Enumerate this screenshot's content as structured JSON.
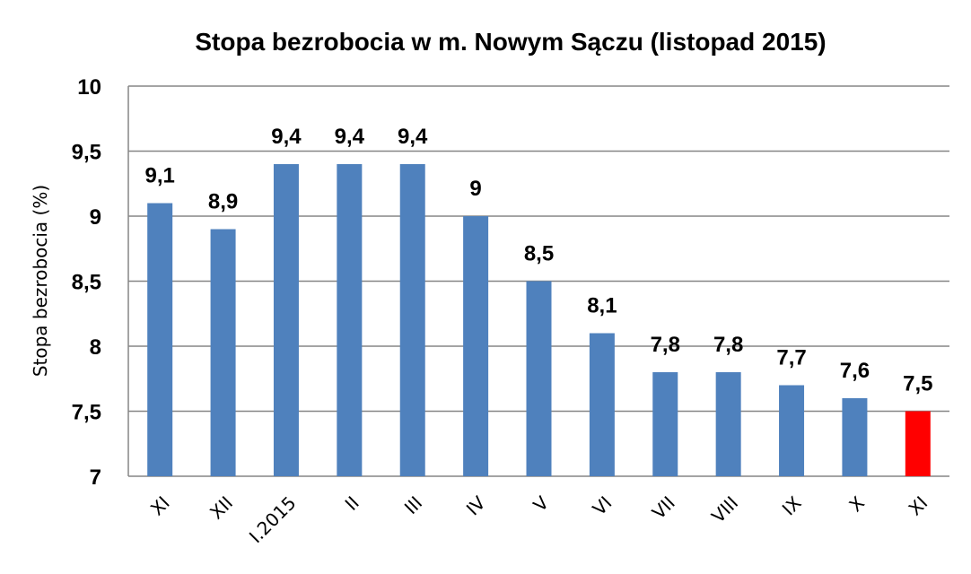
{
  "chart_data": {
    "type": "bar",
    "title": "Stopa bezrobocia w m. Nowym Sączu (listopad 2015)",
    "xlabel": "",
    "ylabel": "Stopa bezrobocia (%)",
    "ylim": [
      7,
      10
    ],
    "yticks": [
      7,
      7.5,
      8,
      8.5,
      9,
      9.5,
      10
    ],
    "ytick_labels": [
      "7",
      "7,5",
      "8",
      "8,5",
      "9",
      "9,5",
      "10"
    ],
    "categories": [
      "XI",
      "XII",
      "I.2015",
      "II",
      "III",
      "IV",
      "V",
      "VI",
      "VII",
      "VIII",
      "IX",
      "X",
      "XI"
    ],
    "values": [
      9.1,
      8.9,
      9.4,
      9.4,
      9.4,
      9.0,
      8.5,
      8.1,
      7.8,
      7.8,
      7.7,
      7.6,
      7.5
    ],
    "data_labels": [
      "9,1",
      "8,9",
      "9,4",
      "9,4",
      "9,4",
      "9",
      "8,5",
      "8,1",
      "7,8",
      "7,8",
      "7,7",
      "7,6",
      "7,5"
    ],
    "bar_colors": [
      "#4f81bd",
      "#4f81bd",
      "#4f81bd",
      "#4f81bd",
      "#4f81bd",
      "#4f81bd",
      "#4f81bd",
      "#4f81bd",
      "#4f81bd",
      "#4f81bd",
      "#4f81bd",
      "#4f81bd",
      "#ff0000"
    ],
    "grid": true,
    "legend": "none",
    "x_tick_rotation_deg": -45
  }
}
